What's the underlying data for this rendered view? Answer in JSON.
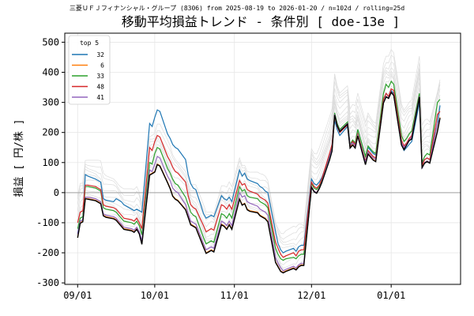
{
  "chart_data": {
    "type": "line",
    "subtitle": "三菱ＵＦＪフィナンシャル・グループ (8306) from 2025-08-19 to 2026-01-20 / n=102d / rolling=25d",
    "title": "移動平均損益トレンド - 条件別 [ doe-13e ]",
    "ylabel": "損益 [ 円/株 ]",
    "xlabel": "",
    "ylim": [
      -305,
      530
    ],
    "yticks": [
      -300,
      -200,
      -100,
      0,
      100,
      200,
      300,
      400,
      500
    ],
    "xticks": [
      "09/01",
      "10/01",
      "11/01",
      "12/01",
      "01/01"
    ],
    "xtick_days": [
      0,
      30,
      61,
      91,
      122
    ],
    "xlim_days": [
      -5,
      149
    ],
    "grid": true,
    "zero_line": true,
    "legend": {
      "title": "top 5",
      "placement": "upper-left"
    },
    "days": [
      0,
      1,
      2,
      3,
      4,
      7,
      8,
      9,
      10,
      11,
      14,
      15,
      16,
      17,
      18,
      21,
      22,
      23,
      24,
      25,
      28,
      29,
      30,
      31,
      32,
      35,
      36,
      37,
      38,
      39,
      42,
      43,
      44,
      45,
      46,
      49,
      50,
      51,
      52,
      53,
      56,
      57,
      58,
      59,
      60,
      63,
      64,
      65,
      66,
      67,
      70,
      71,
      72,
      73,
      74,
      77,
      78,
      79,
      80,
      81,
      84,
      85,
      86,
      87,
      88,
      91,
      92,
      93,
      94,
      95,
      98,
      99,
      100,
      101,
      102,
      105,
      106,
      107,
      108,
      109,
      112,
      113,
      114,
      115,
      116,
      119,
      120,
      121,
      122,
      123,
      126,
      127,
      128,
      129,
      130,
      133,
      134,
      135,
      136,
      137,
      140,
      141
    ],
    "colors": {
      "zero": "#b0b0b0",
      "grid": "#e6e6e6",
      "background": "#dcdcdc",
      "base": "#000000"
    },
    "series": [
      {
        "name": "32",
        "color": "#1f77b4",
        "values": [
          -135,
          -95,
          -90,
          60,
          55,
          45,
          40,
          35,
          -20,
          -25,
          -30,
          -20,
          -25,
          -30,
          -40,
          -55,
          -60,
          -55,
          -60,
          -65,
          230,
          220,
          250,
          275,
          270,
          195,
          180,
          160,
          150,
          145,
          110,
          60,
          30,
          15,
          10,
          -70,
          -85,
          -80,
          -75,
          -80,
          -10,
          -20,
          -25,
          -15,
          -30,
          75,
          55,
          65,
          45,
          40,
          30,
          20,
          15,
          5,
          0,
          -130,
          -170,
          -190,
          -200,
          -195,
          -185,
          -195,
          -180,
          -175,
          -175,
          45,
          30,
          25,
          35,
          50,
          120,
          150,
          240,
          210,
          190,
          220,
          150,
          170,
          160,
          210,
          120,
          150,
          140,
          130,
          125,
          310,
          330,
          320,
          340,
          330,
          160,
          140,
          150,
          160,
          170,
          300,
          95,
          110,
          115,
          110,
          230,
          290
        ]
      },
      {
        "name": "6",
        "color": "#ff7f0e",
        "values": [
          -148,
          -100,
          -95,
          -20,
          -20,
          -25,
          -30,
          -35,
          -75,
          -80,
          -85,
          -90,
          -100,
          -110,
          -120,
          -125,
          -130,
          -120,
          -135,
          -170,
          60,
          65,
          70,
          95,
          90,
          35,
          15,
          -10,
          -20,
          -25,
          -55,
          -80,
          -105,
          -110,
          -115,
          -180,
          -200,
          -195,
          -190,
          -195,
          -105,
          -110,
          -120,
          -105,
          -120,
          -20,
          -40,
          -35,
          -55,
          -60,
          -65,
          -75,
          -80,
          -85,
          -95,
          -230,
          -245,
          -260,
          -265,
          -260,
          -250,
          -255,
          -245,
          -240,
          -240,
          20,
          5,
          0,
          15,
          35,
          110,
          140,
          260,
          225,
          205,
          230,
          150,
          160,
          150,
          190,
          95,
          130,
          120,
          110,
          105,
          300,
          320,
          315,
          335,
          325,
          160,
          145,
          160,
          175,
          180,
          320,
          85,
          100,
          105,
          100,
          205,
          250
        ]
      },
      {
        "name": "33",
        "color": "#2ca02c",
        "values": [
          -120,
          -85,
          -80,
          20,
          20,
          15,
          10,
          5,
          -50,
          -55,
          -60,
          -65,
          -75,
          -85,
          -95,
          -100,
          -105,
          -95,
          -110,
          -140,
          100,
          95,
          130,
          150,
          145,
          80,
          65,
          45,
          30,
          25,
          -15,
          -40,
          -65,
          -75,
          -80,
          -150,
          -170,
          -165,
          -160,
          -165,
          -70,
          -75,
          -85,
          -70,
          -85,
          20,
          5,
          10,
          -10,
          -15,
          -20,
          -30,
          -35,
          -40,
          -50,
          -185,
          -205,
          -220,
          -225,
          -220,
          -215,
          -220,
          -210,
          -205,
          -205,
          30,
          15,
          10,
          20,
          40,
          115,
          145,
          265,
          230,
          210,
          235,
          160,
          175,
          165,
          210,
          120,
          155,
          145,
          135,
          130,
          330,
          360,
          350,
          370,
          360,
          190,
          170,
          180,
          195,
          205,
          330,
          100,
          120,
          130,
          125,
          300,
          310
        ]
      },
      {
        "name": "48",
        "color": "#d62728",
        "values": [
          -100,
          -65,
          -60,
          25,
          25,
          20,
          15,
          10,
          -40,
          -45,
          -50,
          -55,
          -65,
          -75,
          -85,
          -90,
          -95,
          -85,
          -100,
          -120,
          150,
          140,
          170,
          190,
          185,
          120,
          105,
          85,
          70,
          65,
          35,
          -10,
          -40,
          -50,
          -55,
          -110,
          -130,
          -125,
          -120,
          -125,
          -40,
          -45,
          -55,
          -40,
          -55,
          40,
          25,
          30,
          10,
          5,
          -5,
          -15,
          -20,
          -25,
          -35,
          -165,
          -185,
          -205,
          -215,
          -210,
          -200,
          -210,
          -195,
          -190,
          -190,
          35,
          20,
          15,
          25,
          45,
          130,
          160,
          255,
          220,
          200,
          225,
          155,
          170,
          160,
          195,
          105,
          140,
          130,
          120,
          115,
          310,
          330,
          320,
          345,
          340,
          175,
          155,
          165,
          180,
          190,
          320,
          90,
          110,
          115,
          110,
          260,
          270
        ]
      },
      {
        "name": "41",
        "color": "#9467bd",
        "values": [
          -138,
          -95,
          -90,
          -15,
          -15,
          -20,
          -25,
          -30,
          -70,
          -75,
          -80,
          -85,
          -95,
          -105,
          -115,
          -120,
          -125,
          -115,
          -130,
          -160,
          75,
          70,
          95,
          120,
          115,
          55,
          40,
          15,
          5,
          0,
          -40,
          -70,
          -95,
          -100,
          -105,
          -170,
          -190,
          -185,
          -180,
          -185,
          -95,
          -100,
          -110,
          -95,
          -110,
          0,
          -15,
          -10,
          -30,
          -35,
          -45,
          -55,
          -60,
          -65,
          -75,
          -215,
          -235,
          -250,
          -260,
          -255,
          -245,
          -250,
          -240,
          -235,
          -235,
          20,
          5,
          0,
          15,
          35,
          115,
          145,
          260,
          225,
          205,
          230,
          160,
          165,
          155,
          190,
          100,
          135,
          125,
          115,
          110,
          300,
          320,
          315,
          335,
          325,
          165,
          150,
          160,
          175,
          185,
          320,
          80,
          100,
          105,
          100,
          230,
          245
        ]
      }
    ],
    "base_values": [
      -150,
      -102,
      -97,
      -20,
      -22,
      -27,
      -32,
      -37,
      -77,
      -82,
      -87,
      -92,
      -102,
      -112,
      -122,
      -127,
      -132,
      -122,
      -137,
      -172,
      58,
      63,
      68,
      93,
      88,
      33,
      13,
      -12,
      -22,
      -27,
      -57,
      -82,
      -107,
      -112,
      -117,
      -182,
      -202,
      -197,
      -192,
      -197,
      -107,
      -112,
      -122,
      -107,
      -122,
      -22,
      -42,
      -37,
      -57,
      -62,
      -67,
      -77,
      -82,
      -87,
      -97,
      -232,
      -247,
      -262,
      -267,
      -262,
      -252,
      -257,
      -247,
      -242,
      -242,
      18,
      3,
      -2,
      13,
      33,
      108,
      138,
      258,
      223,
      203,
      228,
      148,
      158,
      148,
      188,
      93,
      128,
      118,
      108,
      103,
      298,
      318,
      313,
      333,
      323,
      158,
      143,
      158,
      173,
      178,
      318,
      83,
      98,
      103,
      98,
      203,
      248
    ]
  }
}
